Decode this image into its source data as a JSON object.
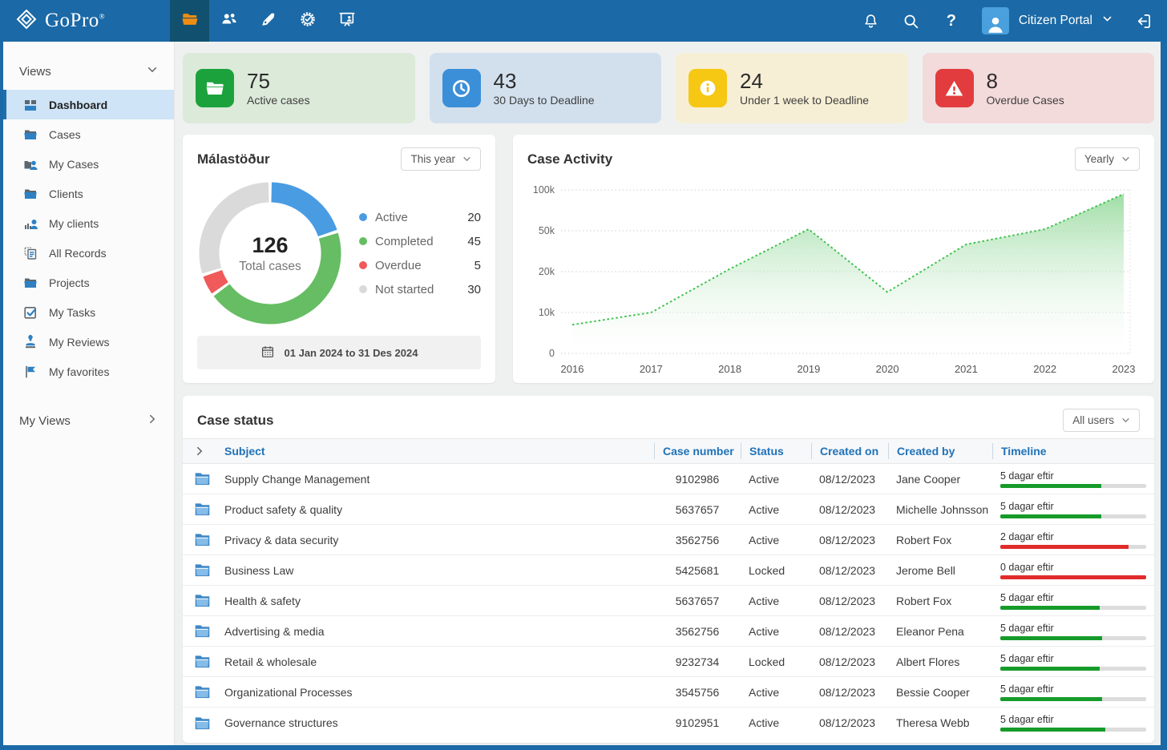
{
  "topbar": {
    "brand": "GoPro",
    "brand_reg": "®",
    "user_label": "Citizen Portal",
    "tabs": [
      {
        "name": "cases",
        "icon": "folder-icon",
        "active": true
      },
      {
        "name": "contacts",
        "icon": "users-icon",
        "active": false
      },
      {
        "name": "signing",
        "icon": "pen-icon",
        "active": false
      },
      {
        "name": "quality",
        "icon": "seal-check-icon",
        "active": false
      },
      {
        "name": "meetings",
        "icon": "board-person-icon",
        "active": false
      }
    ]
  },
  "sidebar": {
    "views_label": "Views",
    "my_views_label": "My Views",
    "items": [
      {
        "label": "Dashboard",
        "icon": "dashboard",
        "active": true
      },
      {
        "label": "Cases",
        "icon": "folder",
        "active": false
      },
      {
        "label": "My Cases",
        "icon": "folder-user",
        "active": false
      },
      {
        "label": "Clients",
        "icon": "folder",
        "active": false
      },
      {
        "label": "My clients",
        "icon": "user-chart",
        "active": false
      },
      {
        "label": "All Records",
        "icon": "records",
        "active": false
      },
      {
        "label": "Projects",
        "icon": "folder",
        "active": false
      },
      {
        "label": "My Tasks",
        "icon": "tasks",
        "active": false
      },
      {
        "label": "My Reviews",
        "icon": "stamp",
        "active": false
      },
      {
        "label": "My favorites",
        "icon": "flag",
        "active": false
      }
    ]
  },
  "stat_cards": [
    {
      "value": "75",
      "label": "Active cases",
      "icon": "folder-icon",
      "accent": "#1ca23c",
      "bg": "#dcead9"
    },
    {
      "value": "43",
      "label": "30 Days to Deadline",
      "icon": "clock-icon",
      "accent": "#3b8fd8",
      "bg": "#d2e0ee"
    },
    {
      "value": "24",
      "label": "Under 1 week to Deadline",
      "icon": "info-icon",
      "accent": "#f6c713",
      "bg": "#f7efd5"
    },
    {
      "value": "8",
      "label": "Overdue Cases",
      "icon": "warning-icon",
      "accent": "#e23c3e",
      "bg": "#f3dadb"
    }
  ],
  "filters": {
    "donut_range": "This year",
    "activity_range": "Yearly",
    "table_users": "All users"
  },
  "chart_data": [
    {
      "type": "donut",
      "title": "Málastöður",
      "center_value": "126",
      "center_label": "Total cases",
      "date_range": "01 Jan 2024 to 31 Des 2024",
      "segments": [
        {
          "label": "Active",
          "value": 20,
          "color": "#4a9ce2"
        },
        {
          "label": "Completed",
          "value": 45,
          "color": "#66bd63"
        },
        {
          "label": "Overdue",
          "value": 5,
          "color": "#f05a5a"
        },
        {
          "label": "Not started",
          "value": 30,
          "color": "#dadada"
        }
      ]
    },
    {
      "type": "area",
      "title": "Case Activity",
      "x": [
        "2016",
        "2017",
        "2018",
        "2019",
        "2020",
        "2021",
        "2022",
        "2023"
      ],
      "values": [
        7000,
        10000,
        22000,
        52000,
        15000,
        40000,
        52000,
        95000
      ],
      "ytick_labels": [
        "0",
        "10k",
        "20k",
        "50k",
        "100k"
      ],
      "ytick_values": [
        0,
        10000,
        20000,
        50000,
        100000
      ],
      "line_color": "#3ec24d",
      "fill_color": "#8fd796",
      "grid": true,
      "legend_position": "none",
      "note": "y axis uses evenly spaced non-linear ticks"
    }
  ],
  "case_table": {
    "title": "Case status",
    "columns": [
      "Subject",
      "Case number",
      "Status",
      "Created on",
      "Created by",
      "Timeline"
    ],
    "timeline_colors": {
      "green": "#169b2a",
      "red": "#e02b2b"
    },
    "rows": [
      {
        "subject": "Supply Change Management",
        "case_number": "9102986",
        "status": "Active",
        "created_on": "08/12/2023",
        "created_by": "Jane Cooper",
        "timeline_label": "5 dagar eftir",
        "timeline_pct": 69,
        "timeline_color": "#169b2a"
      },
      {
        "subject": "Product safety & quality",
        "case_number": "5637657",
        "status": "Active",
        "created_on": "08/12/2023",
        "created_by": "Michelle Johnsson",
        "timeline_label": "5 dagar eftir",
        "timeline_pct": 69,
        "timeline_color": "#169b2a"
      },
      {
        "subject": "Privacy & data security",
        "case_number": "3562756",
        "status": "Active",
        "created_on": "08/12/2023",
        "created_by": "Robert Fox",
        "timeline_label": "2 dagar eftir",
        "timeline_pct": 88,
        "timeline_color": "#e02b2b"
      },
      {
        "subject": "Business Law",
        "case_number": "5425681",
        "status": "Locked",
        "created_on": "08/12/2023",
        "created_by": "Jerome Bell",
        "timeline_label": "0 dagar eftir",
        "timeline_pct": 100,
        "timeline_color": "#e02b2b"
      },
      {
        "subject": "Health & safety",
        "case_number": "5637657",
        "status": "Active",
        "created_on": "08/12/2023",
        "created_by": "Robert Fox",
        "timeline_label": "5 dagar eftir",
        "timeline_pct": 68,
        "timeline_color": "#169b2a"
      },
      {
        "subject": "Advertising & media",
        "case_number": "3562756",
        "status": "Active",
        "created_on": "08/12/2023",
        "created_by": "Eleanor Pena",
        "timeline_label": "5 dagar eftir",
        "timeline_pct": 70,
        "timeline_color": "#169b2a"
      },
      {
        "subject": "Retail & wholesale",
        "case_number": "9232734",
        "status": "Locked",
        "created_on": "08/12/2023",
        "created_by": "Albert Flores",
        "timeline_label": "5 dagar eftir",
        "timeline_pct": 68,
        "timeline_color": "#169b2a"
      },
      {
        "subject": "Organizational Processes",
        "case_number": "3545756",
        "status": "Active",
        "created_on": "08/12/2023",
        "created_by": "Bessie Cooper",
        "timeline_label": "5 dagar eftir",
        "timeline_pct": 70,
        "timeline_color": "#169b2a"
      },
      {
        "subject": "Governance structures",
        "case_number": "9102951",
        "status": "Active",
        "created_on": "08/12/2023",
        "created_by": "Theresa Webb",
        "timeline_label": "5 dagar eftir",
        "timeline_pct": 72,
        "timeline_color": "#169b2a"
      }
    ]
  }
}
